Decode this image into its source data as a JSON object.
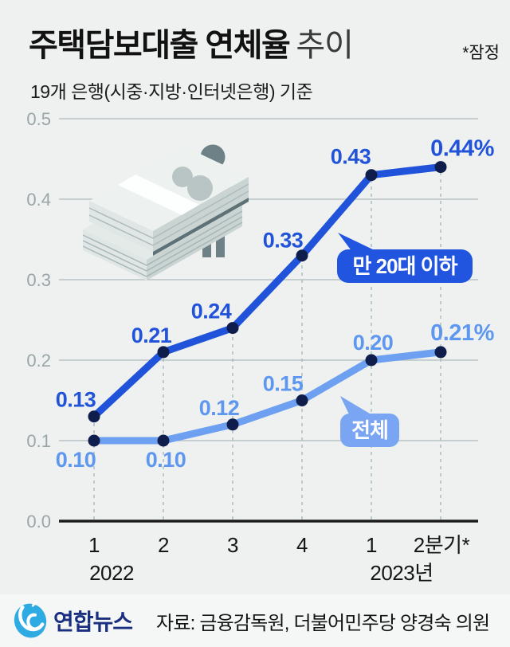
{
  "header": {
    "title_bold": "주택담보대출 연체율",
    "title_light": "추이",
    "note": "*잠정",
    "subtitle": "19개 은행(시중·지방·인터넷은행) 기준"
  },
  "chart_data": {
    "type": "line",
    "unit": "%",
    "x_tick_labels": [
      "1",
      "2",
      "3",
      "4",
      "1",
      "2분기*"
    ],
    "year_labels": [
      {
        "text": "2022",
        "tick_index": 0
      },
      {
        "text": "2023년",
        "tick_index": 4
      }
    ],
    "y_ticks": [
      0,
      0.1,
      0.2,
      0.3,
      0.4,
      0.5
    ],
    "y_tick_labels": [
      "0.0",
      "0.1",
      "0.2",
      "0.3",
      "0.4",
      "0.5"
    ],
    "ylim": [
      0,
      0.5
    ],
    "grid": true,
    "legend_position": "on-chart speech bubbles",
    "series": [
      {
        "name": "만 20대 이하",
        "color": "#2153da",
        "label_color": "#2153da",
        "values": [
          0.13,
          0.21,
          0.24,
          0.33,
          0.43,
          0.44
        ],
        "point_labels": [
          "0.13",
          "0.21",
          "0.24",
          "0.33",
          "0.43",
          "0.44%"
        ]
      },
      {
        "name": "전체",
        "color": "#6da0f0",
        "label_color": "#5d97ef",
        "values": [
          0.1,
          0.1,
          0.12,
          0.15,
          0.2,
          0.21
        ],
        "point_labels": [
          "0.10",
          "0.10",
          "0.12",
          "0.15",
          "0.20",
          "0.21%"
        ]
      }
    ]
  },
  "footer": {
    "brand": "연합뉴스",
    "source": "자료: 금융감독원, 더불어민주당 양경숙 의원"
  }
}
